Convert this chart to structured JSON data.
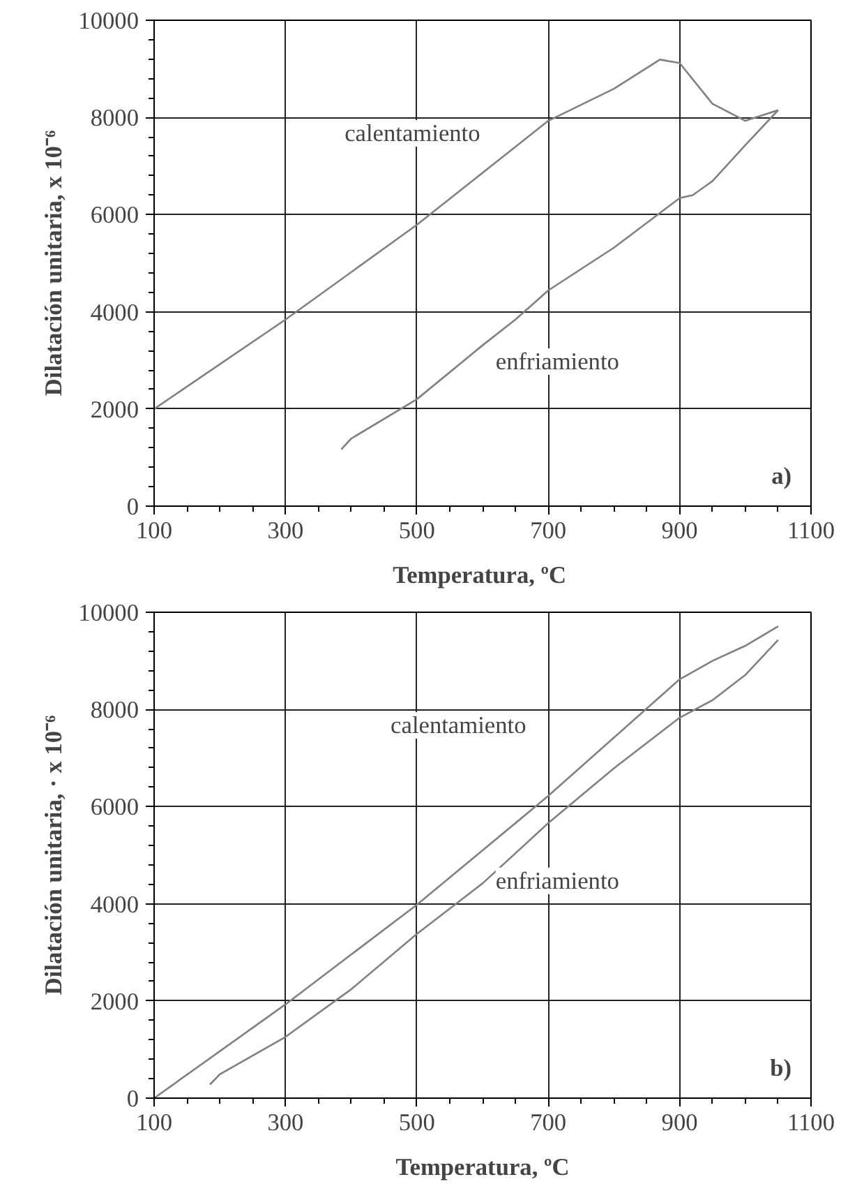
{
  "chart_data": [
    {
      "type": "line",
      "xlabel": "Temperatura,  ºC",
      "ylabel": "Dilatación unitaria, x 10⁻⁶",
      "xlim": [
        100,
        1100
      ],
      "ylim": [
        0,
        10000
      ],
      "xticks": [
        100,
        300,
        500,
        700,
        900,
        1100
      ],
      "yticks": [
        0,
        2000,
        4000,
        6000,
        8000,
        10000
      ],
      "grid": true,
      "series": [
        {
          "color": "#808080",
          "x": [
            100,
            300,
            500,
            700,
            800,
            870,
            900,
            950,
            1000,
            1050
          ],
          "values": [
            2000,
            3840,
            5790,
            7930,
            8590,
            9190,
            9120,
            8280,
            7930,
            8150
          ]
        },
        {
          "color": "#808080",
          "x": [
            1050,
            1000,
            950,
            920,
            900,
            800,
            700,
            650,
            600,
            500,
            400,
            385
          ],
          "values": [
            8150,
            7430,
            6690,
            6400,
            6340,
            5320,
            4440,
            3840,
            3310,
            2200,
            1390,
            1170
          ]
        }
      ],
      "annotations": [
        "calentamiento",
        "enfriamiento",
        "a)"
      ]
    },
    {
      "type": "line",
      "xlabel": "Temperatura, ºC",
      "ylabel": "Dilatación unitaria, · x 10⁻⁶",
      "xlim": [
        100,
        1100
      ],
      "ylim": [
        0,
        10000
      ],
      "xticks": [
        100,
        300,
        500,
        700,
        900,
        1100
      ],
      "yticks": [
        0,
        2000,
        4000,
        6000,
        8000,
        10000
      ],
      "grid": true,
      "series": [
        {
          "color": "#808080",
          "x": [
            100,
            300,
            500,
            700,
            900,
            950,
            1000,
            1050
          ],
          "values": [
            0,
            1930,
            3980,
            6220,
            8620,
            9000,
            9310,
            9710
          ]
        },
        {
          "color": "#808080",
          "x": [
            1050,
            1000,
            950,
            900,
            800,
            700,
            600,
            500,
            400,
            300,
            200,
            185
          ],
          "values": [
            9430,
            8710,
            8190,
            7830,
            6790,
            5660,
            4420,
            3380,
            2240,
            1260,
            490,
            280
          ]
        }
      ],
      "annotations": [
        "calentamiento",
        "enfriamiento",
        "b)"
      ]
    }
  ]
}
